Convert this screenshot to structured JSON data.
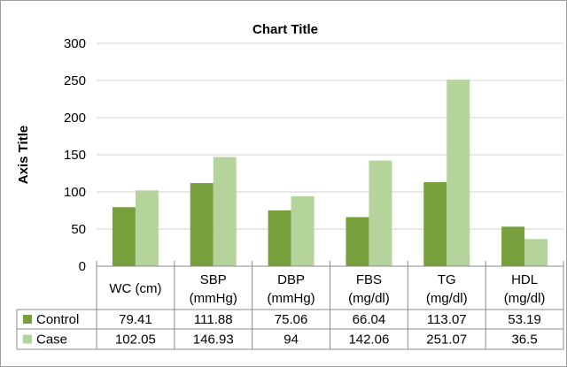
{
  "chart_data": {
    "type": "bar",
    "title": "Chart Title",
    "ylabel": "Axis Title",
    "xlabel": "",
    "ylim": [
      0,
      300
    ],
    "yticks": [
      0,
      50,
      100,
      150,
      200,
      250,
      300
    ],
    "grid": true,
    "legend": "data-table",
    "categories": [
      [
        "WC (cm)"
      ],
      [
        "SBP",
        "(mmHg)"
      ],
      [
        "DBP",
        "(mmHg)"
      ],
      [
        "FBS",
        "(mg/dl)"
      ],
      [
        "TG",
        "(mg/dl)"
      ],
      [
        "HDL",
        "(mg/dl)"
      ]
    ],
    "series": [
      {
        "name": "Control",
        "color": "#77a03c",
        "values": [
          79.41,
          111.88,
          75.06,
          66.04,
          113.07,
          53.19
        ],
        "labels": [
          "79.41",
          "111.88",
          "75.06",
          "66.04",
          "113.07",
          "53.19"
        ]
      },
      {
        "name": "Case",
        "color": "#b5d49b",
        "values": [
          102.05,
          146.93,
          94,
          142.06,
          251.07,
          36.5
        ],
        "labels": [
          "102.05",
          "146.93",
          "94",
          "142.06",
          "251.07",
          "36.5"
        ]
      }
    ]
  }
}
